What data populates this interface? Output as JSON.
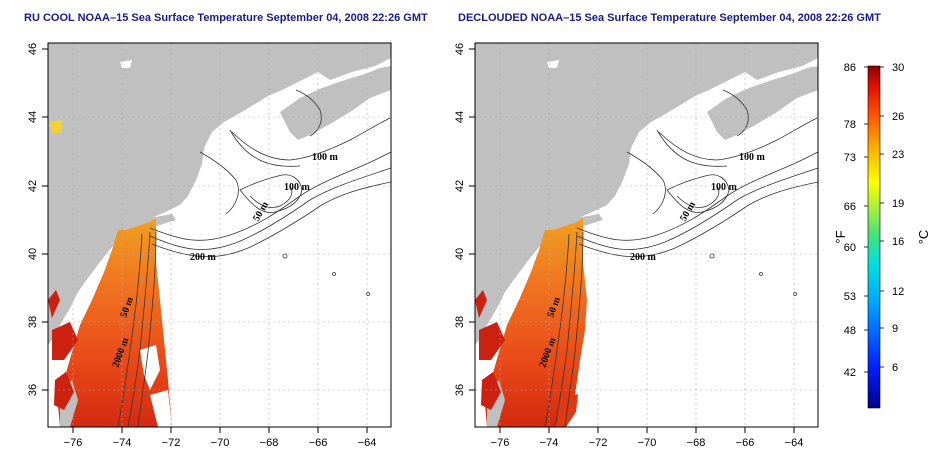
{
  "left_panel": {
    "title": "RU COOL NOAA–15 Sea Surface Temperature September 04, 2008 22:26 GMT",
    "contour_labels": [
      "100 m",
      "100 m",
      "50 m",
      "200 m",
      "50 m",
      "2000 m"
    ]
  },
  "right_panel": {
    "title": "DECLOUDED NOAA–15 Sea Surface Temperature September 04, 2008 22:26 GMT",
    "contour_labels": [
      "100 m",
      "100 m",
      "50 m",
      "200 m",
      "50 m",
      "2000 m"
    ]
  },
  "axes": {
    "x_ticks": [
      "−76",
      "−74",
      "−72",
      "−70",
      "−68",
      "−66",
      "−64"
    ],
    "y_ticks": [
      "36",
      "38",
      "40",
      "42",
      "44",
      "46"
    ]
  },
  "colorbar": {
    "fahrenheit_ticks": [
      "86",
      "78",
      "73",
      "66",
      "60",
      "53",
      "48",
      "42"
    ],
    "celsius_ticks": [
      "30",
      "26",
      "23",
      "19",
      "16",
      "12",
      "9",
      "6"
    ],
    "fahrenheit_unit": "°F",
    "celsius_unit": "°C"
  },
  "colors": {
    "land": "#c0c0c0",
    "title": "#1a1a8c",
    "sst_warm": "#e8501a",
    "sst_hot": "#cc2010"
  }
}
